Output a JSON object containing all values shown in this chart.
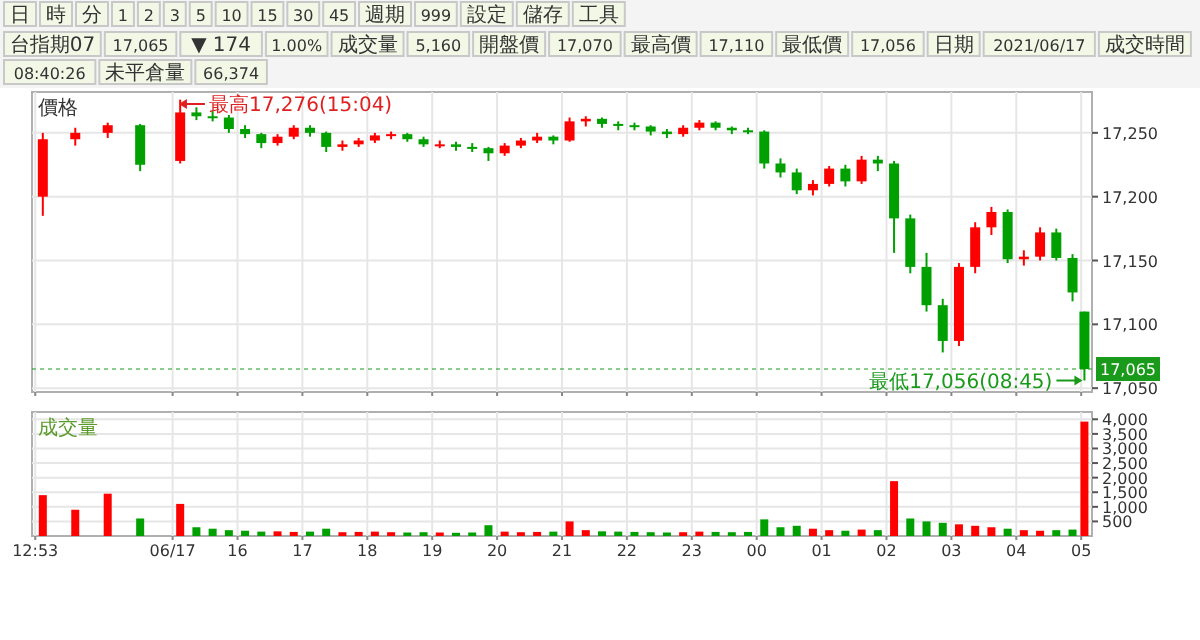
{
  "chart_data": [
    {
      "type": "candlestick",
      "ylabel": "價格",
      "grid": true,
      "tick_labels": "y",
      "x": [
        "2021-06-17T13:00",
        "2021-06-17T13:30",
        "2021-06-17T14:00",
        "2021-06-17T14:30",
        "2021-06-17T15:07",
        "2021-06-17T15:22",
        "2021-06-17T15:37",
        "2021-06-17T15:52",
        "2021-06-17T16:07",
        "2021-06-17T16:22",
        "2021-06-17T16:37",
        "2021-06-17T16:52",
        "2021-06-17T17:07",
        "2021-06-17T17:22",
        "2021-06-17T17:37",
        "2021-06-17T17:52",
        "2021-06-17T18:07",
        "2021-06-17T18:22",
        "2021-06-17T18:37",
        "2021-06-17T18:52",
        "2021-06-17T19:07",
        "2021-06-17T19:22",
        "2021-06-17T19:37",
        "2021-06-17T19:52",
        "2021-06-17T20:07",
        "2021-06-17T20:22",
        "2021-06-17T20:37",
        "2021-06-17T20:52",
        "2021-06-17T21:07",
        "2021-06-17T21:22",
        "2021-06-17T21:37",
        "2021-06-17T21:52",
        "2021-06-17T22:07",
        "2021-06-17T22:22",
        "2021-06-17T22:37",
        "2021-06-17T22:52",
        "2021-06-17T23:07",
        "2021-06-17T23:22",
        "2021-06-17T23:37",
        "2021-06-17T23:52",
        "2021-06-18T00:07",
        "2021-06-18T00:22",
        "2021-06-18T00:37",
        "2021-06-18T00:52",
        "2021-06-18T01:07",
        "2021-06-18T01:22",
        "2021-06-18T01:37",
        "2021-06-18T01:52",
        "2021-06-18T02:07",
        "2021-06-18T02:22",
        "2021-06-18T02:37",
        "2021-06-18T02:52",
        "2021-06-18T03:07",
        "2021-06-18T03:22",
        "2021-06-18T03:37",
        "2021-06-18T03:52",
        "2021-06-18T04:07",
        "2021-06-18T04:22",
        "2021-06-18T04:37",
        "2021-06-18T04:52",
        "2021-06-18T05:03"
      ],
      "ohlc": [
        [
          17200,
          17250,
          17185,
          17245
        ],
        [
          17245,
          17254,
          17240,
          17250
        ],
        [
          17250,
          17258,
          17246,
          17256
        ],
        [
          17256,
          17257,
          17220,
          17225
        ],
        [
          17228,
          17276,
          17226,
          17266
        ],
        [
          17266,
          17270,
          17260,
          17263
        ],
        [
          17263,
          17267,
          17259,
          17262
        ],
        [
          17262,
          17264,
          17250,
          17253
        ],
        [
          17253,
          17256,
          17246,
          17249
        ],
        [
          17249,
          17250,
          17238,
          17242
        ],
        [
          17242,
          17249,
          17240,
          17247
        ],
        [
          17247,
          17256,
          17245,
          17254
        ],
        [
          17254,
          17256,
          17247,
          17250
        ],
        [
          17250,
          17251,
          17235,
          17239
        ],
        [
          17239,
          17244,
          17236,
          17241
        ],
        [
          17241,
          17246,
          17239,
          17244
        ],
        [
          17244,
          17250,
          17242,
          17248
        ],
        [
          17248,
          17251,
          17245,
          17249
        ],
        [
          17249,
          17250,
          17243,
          17245
        ],
        [
          17245,
          17247,
          17239,
          17241
        ],
        [
          17241,
          17244,
          17238,
          17241
        ],
        [
          17241,
          17243,
          17236,
          17239
        ],
        [
          17239,
          17242,
          17235,
          17238
        ],
        [
          17238,
          17239,
          17228,
          17234
        ],
        [
          17234,
          17242,
          17232,
          17240
        ],
        [
          17240,
          17246,
          17238,
          17244
        ],
        [
          17244,
          17250,
          17242,
          17247
        ],
        [
          17247,
          17248,
          17241,
          17244
        ],
        [
          17244,
          17262,
          17243,
          17259
        ],
        [
          17259,
          17263,
          17255,
          17261
        ],
        [
          17261,
          17262,
          17254,
          17257
        ],
        [
          17257,
          17259,
          17252,
          17256
        ],
        [
          17256,
          17258,
          17252,
          17255
        ],
        [
          17255,
          17256,
          17248,
          17251
        ],
        [
          17251,
          17253,
          17246,
          17249
        ],
        [
          17249,
          17256,
          17247,
          17254
        ],
        [
          17254,
          17260,
          17252,
          17258
        ],
        [
          17258,
          17259,
          17252,
          17254
        ],
        [
          17254,
          17255,
          17249,
          17252
        ],
        [
          17252,
          17254,
          17249,
          17251
        ],
        [
          17251,
          17252,
          17222,
          17226
        ],
        [
          17226,
          17230,
          17215,
          17219
        ],
        [
          17219,
          17222,
          17202,
          17205
        ],
        [
          17205,
          17213,
          17201,
          17210
        ],
        [
          17210,
          17224,
          17208,
          17222
        ],
        [
          17222,
          17225,
          17208,
          17212
        ],
        [
          17212,
          17232,
          17210,
          17229
        ],
        [
          17229,
          17232,
          17220,
          17226
        ],
        [
          17226,
          17228,
          17156,
          17183
        ],
        [
          17183,
          17186,
          17140,
          17145
        ],
        [
          17145,
          17156,
          17110,
          17115
        ],
        [
          17115,
          17120,
          17078,
          17087
        ],
        [
          17087,
          17148,
          17083,
          17145
        ],
        [
          17145,
          17180,
          17140,
          17176
        ],
        [
          17176,
          17192,
          17170,
          17188
        ],
        [
          17188,
          17190,
          17148,
          17151
        ],
        [
          17151,
          17158,
          17146,
          17153
        ],
        [
          17153,
          17176,
          17150,
          17172
        ],
        [
          17172,
          17175,
          17150,
          17152
        ],
        [
          17152,
          17155,
          17118,
          17125
        ],
        [
          17110,
          17110,
          17056,
          17065
        ]
      ],
      "xlim": [
        "2021-06-17T12:50",
        "2021-06-18T05:10"
      ],
      "xticks": [
        {
          "value": "2021-06-17T12:53",
          "label": null
        },
        {
          "value": "2021-06-17T15:00",
          "label": null
        },
        {
          "value": "2021-06-17T16:00",
          "label": null
        },
        {
          "value": "2021-06-17T17:00",
          "label": null
        },
        {
          "value": "2021-06-17T18:00",
          "label": null
        },
        {
          "value": "2021-06-17T19:00",
          "label": null
        },
        {
          "value": "2021-06-17T20:00",
          "label": null
        },
        {
          "value": "2021-06-17T21:00",
          "label": null
        },
        {
          "value": "2021-06-17T22:00",
          "label": null
        },
        {
          "value": "2021-06-17T23:00",
          "label": null
        },
        {
          "value": "2021-06-18T00:00",
          "label": null
        },
        {
          "value": "2021-06-18T01:00",
          "label": null
        },
        {
          "value": "2021-06-18T02:00",
          "label": null
        },
        {
          "value": "2021-06-18T03:00",
          "label": null
        },
        {
          "value": "2021-06-18T04:00",
          "label": null
        },
        {
          "value": "2021-06-18T05:00",
          "label": null
        }
      ],
      "ylim": [
        17047,
        17282
      ],
      "yticks": [
        {
          "value": 17050,
          "label": "17,050"
        },
        {
          "value": 17100,
          "label": "17,100"
        },
        {
          "value": 17150,
          "label": "17,150"
        },
        {
          "value": 17200,
          "label": "17,200"
        },
        {
          "value": 17250,
          "label": "17,250"
        }
      ],
      "ref_lines": [
        {
          "axis": "y",
          "value": 17065,
          "label": "17,065",
          "color": "#1a9a1a"
        }
      ],
      "annotations": [
        {
          "text": "最高17,276(15:04)",
          "x": "2021-06-17T15:04",
          "y": 17276
        },
        {
          "text": "最低17,056(08:45)",
          "x": "2021-06-18T05:03",
          "y": 17056
        },
        "台指期07",
        "17,065",
        "▼ 174",
        "1.00%",
        "成交量",
        "5,160",
        "開盤價",
        "17,070",
        "最高價",
        "17,110",
        "最低價",
        "17,056",
        "日期",
        "2021/06/17",
        "成交時間",
        "08:40:26",
        "未平倉量",
        "66,374"
      ]
    },
    {
      "type": "bar",
      "ylabel": "成交量",
      "grid": true,
      "x": [
        "2021-06-17T13:00",
        "2021-06-17T13:30",
        "2021-06-17T14:00",
        "2021-06-17T14:30",
        "2021-06-17T15:07",
        "2021-06-17T15:22",
        "2021-06-17T15:37",
        "2021-06-17T15:52",
        "2021-06-17T16:07",
        "2021-06-17T16:22",
        "2021-06-17T16:37",
        "2021-06-17T16:52",
        "2021-06-17T17:07",
        "2021-06-17T17:22",
        "2021-06-17T17:37",
        "2021-06-17T17:52",
        "2021-06-17T18:07",
        "2021-06-17T18:22",
        "2021-06-17T18:37",
        "2021-06-17T18:52",
        "2021-06-17T19:07",
        "2021-06-17T19:22",
        "2021-06-17T19:37",
        "2021-06-17T19:52",
        "2021-06-17T20:07",
        "2021-06-17T20:22",
        "2021-06-17T20:37",
        "2021-06-17T20:52",
        "2021-06-17T21:07",
        "2021-06-17T21:22",
        "2021-06-17T21:37",
        "2021-06-17T21:52",
        "2021-06-17T22:07",
        "2021-06-17T22:22",
        "2021-06-17T22:37",
        "2021-06-17T22:52",
        "2021-06-17T23:07",
        "2021-06-17T23:22",
        "2021-06-17T23:37",
        "2021-06-17T23:52",
        "2021-06-18T00:07",
        "2021-06-18T00:22",
        "2021-06-18T00:37",
        "2021-06-18T00:52",
        "2021-06-18T01:07",
        "2021-06-18T01:22",
        "2021-06-18T01:37",
        "2021-06-18T01:52",
        "2021-06-18T02:07",
        "2021-06-18T02:22",
        "2021-06-18T02:37",
        "2021-06-18T02:52",
        "2021-06-18T03:07",
        "2021-06-18T03:22",
        "2021-06-18T03:37",
        "2021-06-18T03:52",
        "2021-06-18T04:07",
        "2021-06-18T04:22",
        "2021-06-18T04:37",
        "2021-06-18T04:52",
        "2021-06-18T05:03"
      ],
      "values": [
        1400,
        900,
        1450,
        600,
        1100,
        300,
        250,
        200,
        180,
        150,
        160,
        140,
        150,
        250,
        130,
        140,
        150,
        130,
        120,
        130,
        120,
        110,
        120,
        370,
        150,
        130,
        140,
        150,
        500,
        200,
        160,
        150,
        140,
        130,
        120,
        130,
        150,
        140,
        130,
        140,
        570,
        300,
        350,
        250,
        200,
        180,
        220,
        200,
        1880,
        600,
        500,
        450,
        400,
        350,
        300,
        250,
        200,
        180,
        200,
        220,
        3920
      ],
      "colors": [
        "#ff0000",
        "#ff0000",
        "#ff0000",
        "#00a000",
        "#ff0000",
        "#00a000",
        "#00a000",
        "#00a000",
        "#00a000",
        "#00a000",
        "#ff0000",
        "#ff0000",
        "#00a000",
        "#00a000",
        "#ff0000",
        "#ff0000",
        "#ff0000",
        "#ff0000",
        "#00a000",
        "#00a000",
        "#ff0000",
        "#00a000",
        "#00a000",
        "#00a000",
        "#ff0000",
        "#ff0000",
        "#ff0000",
        "#00a000",
        "#ff0000",
        "#ff0000",
        "#00a000",
        "#00a000",
        "#00a000",
        "#00a000",
        "#00a000",
        "#ff0000",
        "#ff0000",
        "#00a000",
        "#00a000",
        "#00a000",
        "#00a000",
        "#00a000",
        "#00a000",
        "#ff0000",
        "#ff0000",
        "#00a000",
        "#ff0000",
        "#00a000",
        "#ff0000",
        "#00a000",
        "#00a000",
        "#00a000",
        "#ff0000",
        "#ff0000",
        "#ff0000",
        "#00a000",
        "#ff0000",
        "#ff0000",
        "#00a000",
        "#00a000",
        "#ff0000"
      ],
      "xlim": [
        "2021-06-17T12:50",
        "2021-06-18T05:10"
      ],
      "xticks": [
        {
          "value": "2021-06-17T12:53",
          "label": "12:53"
        },
        {
          "value": "2021-06-17T15:00",
          "label": "06/17"
        },
        {
          "value": "2021-06-17T16:00",
          "label": "16"
        },
        {
          "value": "2021-06-17T17:00",
          "label": "17"
        },
        {
          "value": "2021-06-17T18:00",
          "label": "18"
        },
        {
          "value": "2021-06-17T19:00",
          "label": "19"
        },
        {
          "value": "2021-06-17T20:00",
          "label": "20"
        },
        {
          "value": "2021-06-17T21:00",
          "label": "21"
        },
        {
          "value": "2021-06-17T22:00",
          "label": "22"
        },
        {
          "value": "2021-06-17T23:00",
          "label": "23"
        },
        {
          "value": "2021-06-18T00:00",
          "label": "00"
        },
        {
          "value": "2021-06-18T01:00",
          "label": "01"
        },
        {
          "value": "2021-06-18T02:00",
          "label": "02"
        },
        {
          "value": "2021-06-18T03:00",
          "label": "03"
        },
        {
          "value": "2021-06-18T04:00",
          "label": "04"
        },
        {
          "value": "2021-06-18T05:00",
          "label": "05"
        }
      ],
      "ylim": [
        0,
        4250
      ],
      "yticks": [
        {
          "value": 500,
          "label": "500"
        },
        {
          "value": 1000,
          "label": "1,000"
        },
        {
          "value": 1500,
          "label": "1,500"
        },
        {
          "value": 2000,
          "label": "2,000"
        },
        {
          "value": 2500,
          "label": "2,500"
        },
        {
          "value": 3000,
          "label": "3,000"
        },
        {
          "value": 3500,
          "label": "3,500"
        },
        {
          "value": 4000,
          "label": "4,000"
        }
      ],
      "annotations": [
        "日",
        "時",
        "分",
        "1",
        "2",
        "3",
        "5",
        "10",
        "15",
        "30",
        "45",
        "週期",
        "999",
        "設定",
        "儲存",
        "工具"
      ]
    }
  ]
}
